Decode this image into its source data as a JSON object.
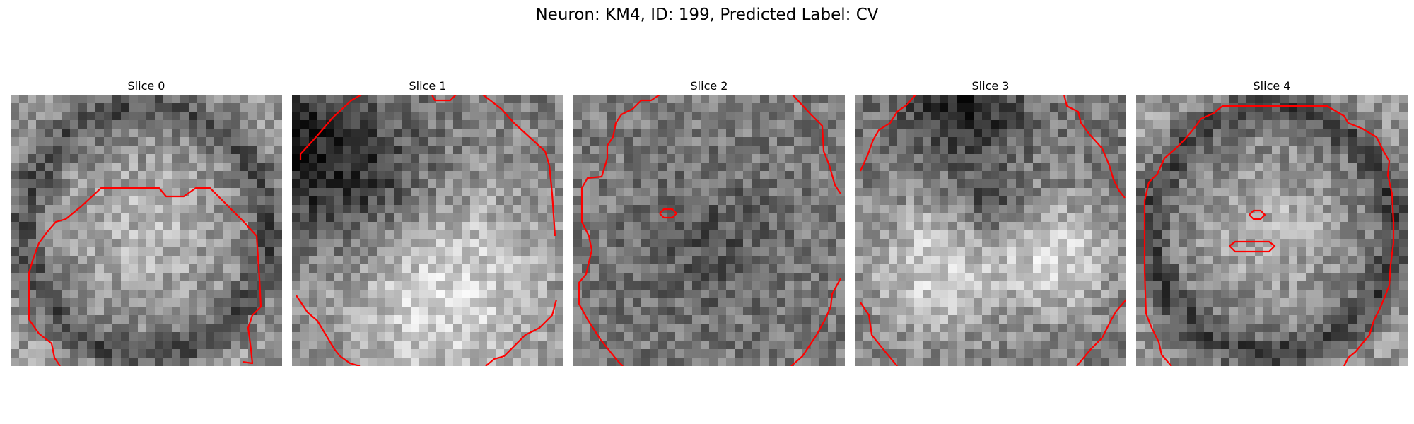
{
  "figure": {
    "title": "Neuron: KM4, ID: 199, Predicted Label: CV"
  },
  "panels": [
    {
      "title": "Slice 0"
    },
    {
      "title": "Slice 1"
    },
    {
      "title": "Slice 2"
    },
    {
      "title": "Slice 3"
    },
    {
      "title": "Slice 4"
    }
  ],
  "style": {
    "contour_color": "#ff0000",
    "colormap": "gray"
  }
}
